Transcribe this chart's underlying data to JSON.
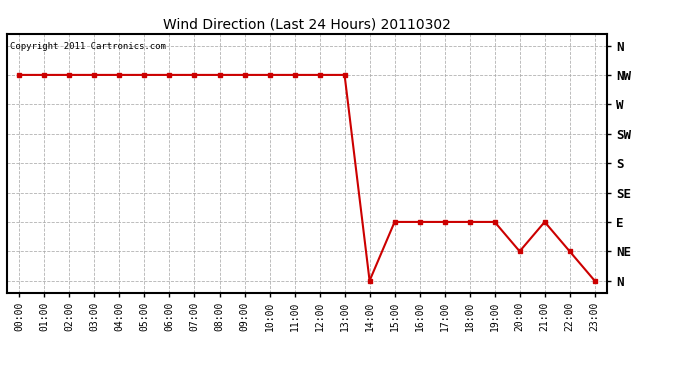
{
  "title": "Wind Direction (Last 24 Hours) 20110302",
  "copyright_text": "Copyright 2011 Cartronics.com",
  "background_color": "#ffffff",
  "line_color": "#cc0000",
  "marker_color": "#cc0000",
  "grid_color": "#aaaaaa",
  "x_labels": [
    "00:00",
    "01:00",
    "02:00",
    "03:00",
    "04:00",
    "05:00",
    "06:00",
    "07:00",
    "08:00",
    "09:00",
    "10:00",
    "11:00",
    "12:00",
    "13:00",
    "14:00",
    "15:00",
    "16:00",
    "17:00",
    "18:00",
    "19:00",
    "20:00",
    "21:00",
    "22:00",
    "23:00"
  ],
  "x_ticks": [
    0,
    1,
    2,
    3,
    4,
    5,
    6,
    7,
    8,
    9,
    10,
    11,
    12,
    13,
    14,
    15,
    16,
    17,
    18,
    19,
    20,
    21,
    22,
    23
  ],
  "ytick_labels_right": [
    "N",
    "NW",
    "W",
    "SW",
    "S",
    "SE",
    "E",
    "NE",
    "N"
  ],
  "ytick_values": [
    8,
    7,
    6,
    5,
    4,
    3,
    2,
    1,
    0
  ],
  "data_x": [
    0,
    1,
    2,
    3,
    4,
    5,
    6,
    7,
    8,
    9,
    10,
    11,
    12,
    13,
    14,
    15,
    16,
    17,
    18,
    19,
    20,
    21,
    22,
    23
  ],
  "data_y": [
    7,
    7,
    7,
    7,
    7,
    7,
    7,
    7,
    7,
    7,
    7,
    7,
    7,
    7,
    0,
    2,
    2,
    2,
    2,
    2,
    1,
    2,
    1,
    0
  ]
}
